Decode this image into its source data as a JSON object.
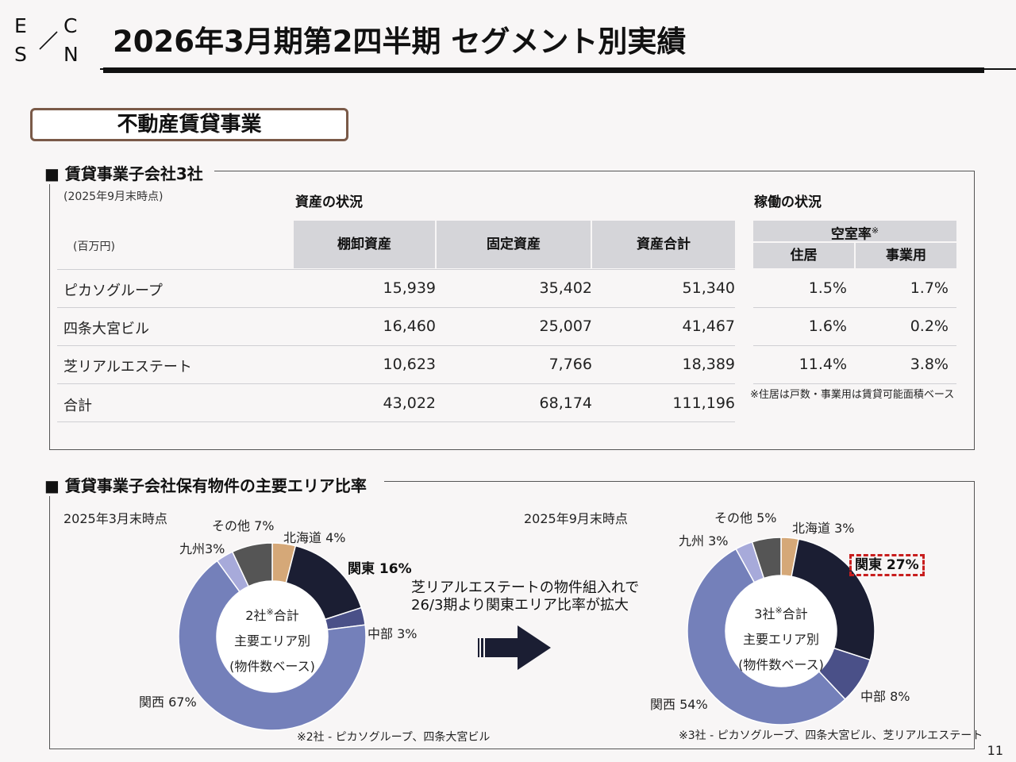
{
  "logo": {
    "e": "E",
    "c": "C",
    "s": "S",
    "n": "N",
    "slash": "/"
  },
  "header": {
    "title": "2026年3月期第2四半期 セグメント別実績"
  },
  "section": {
    "title": "不動産賃貸事業"
  },
  "subsidiaries": {
    "heading": "■ 賃貸事業子会社3社",
    "as_of": "(2025年9月末時点)",
    "unit": "(百万円)",
    "asset_caption": "資産の状況",
    "occupancy_caption": "稼働の状況",
    "asset_columns": [
      "棚卸資産",
      "固定資産",
      "資産合計"
    ],
    "vacancy_header": "空室率",
    "vacancy_mark": "※",
    "vacancy_columns": [
      "住居",
      "事業用"
    ],
    "rows": [
      {
        "name": "ピカソグループ",
        "inventory": "15,939",
        "fixed": "35,402",
        "total": "51,340",
        "residential": "1.5%",
        "business": "1.7%"
      },
      {
        "name": "四条大宮ビル",
        "inventory": "16,460",
        "fixed": "25,007",
        "total": "41,467",
        "residential": "1.6%",
        "business": "0.2%"
      },
      {
        "name": "芝リアルエステート",
        "inventory": "10,623",
        "fixed": "7,766",
        "total": "18,389",
        "residential": "11.4%",
        "business": "3.8%"
      },
      {
        "name": "合計",
        "inventory": "43,022",
        "fixed": "68,174",
        "total": "111,196"
      }
    ],
    "vacancy_note": "※住居は戸数・事業用は賃貸可能面積ベース"
  },
  "area": {
    "heading": "■ 賃貸事業子会社保有物件の主要エリア比率",
    "message_line1": "芝リアルエステートの物件組入れで",
    "message_line2": "26/3期より関東エリア比率が拡大",
    "colors": {
      "hokkaido": "#d5a878",
      "kanto": "#1b1e33",
      "chubu": "#4a5088",
      "kansai": "#7480ba",
      "kyushu": "#a7aada",
      "other": "#555555"
    }
  },
  "chart_data": [
    {
      "type": "pie",
      "title": "2025年3月末時点",
      "center_lines": [
        "主要エリア別",
        "(物件数ベース)"
      ],
      "center_prefix": "2社",
      "center_mark": "※",
      "center_suffix": "合計",
      "categories": [
        "北海道",
        "関東",
        "中部",
        "関西",
        "九州",
        "その他"
      ],
      "values": [
        4,
        16,
        3,
        67,
        3,
        7
      ],
      "labels": [
        "北海道 4%",
        "関東 16%",
        "中部 3%",
        "関西 67%",
        "九州3%",
        "その他 7%"
      ],
      "footnote": "※2社 - ピカソグループ、四条大宮ビル"
    },
    {
      "type": "pie",
      "title": "2025年9月末時点",
      "center_lines": [
        "主要エリア別",
        "(物件数ベース)"
      ],
      "center_prefix": "3社",
      "center_mark": "※",
      "center_suffix": "合計",
      "categories": [
        "北海道",
        "関東",
        "中部",
        "関西",
        "九州",
        "その他"
      ],
      "values": [
        3,
        27,
        8,
        54,
        3,
        5
      ],
      "labels": [
        "北海道 3%",
        "関東 27%",
        "中部 8%",
        "関西 54%",
        "九州 3%",
        "その他 5%"
      ],
      "footnote": "※3社 - ピカソグループ、四条大宮ビル、芝リアルエステート"
    }
  ],
  "page": {
    "number": "11"
  }
}
